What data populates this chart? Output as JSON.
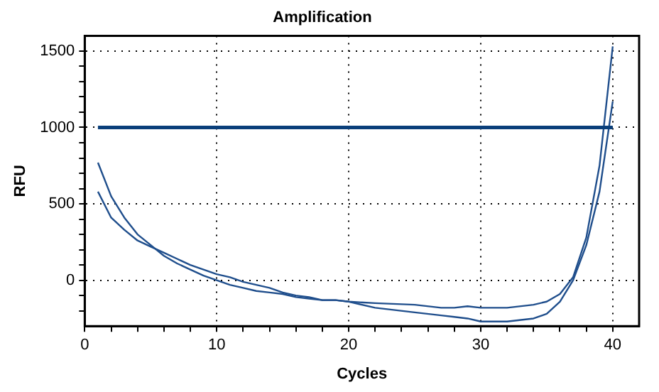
{
  "chart_data": {
    "type": "line",
    "title": "Amplification",
    "xlabel": "Cycles",
    "ylabel": "RFU",
    "x": [
      1,
      2,
      3,
      4,
      5,
      6,
      7,
      8,
      9,
      10,
      11,
      12,
      13,
      14,
      15,
      16,
      17,
      18,
      19,
      20,
      22,
      25,
      27,
      28,
      29,
      30,
      32,
      34,
      35,
      36,
      37,
      38,
      39,
      40
    ],
    "series": [
      {
        "color": "#1f4e8c",
        "values": [
          770,
          550,
          410,
          300,
          230,
          160,
          110,
          70,
          30,
          0,
          -30,
          -50,
          -70,
          -80,
          -90,
          -110,
          -120,
          -130,
          -130,
          -140,
          -180,
          -210,
          -230,
          -240,
          -250,
          -270,
          -270,
          -250,
          -220,
          -140,
          0,
          230,
          580,
          1170
        ]
      },
      {
        "color": "#1f4e8c",
        "values": [
          580,
          410,
          330,
          260,
          220,
          180,
          140,
          100,
          70,
          40,
          20,
          -10,
          -30,
          -50,
          -80,
          -100,
          -110,
          -130,
          -130,
          -140,
          -150,
          -160,
          -180,
          -180,
          -170,
          -180,
          -180,
          -160,
          -140,
          -90,
          20,
          280,
          750,
          1530
        ]
      }
    ],
    "ref_lines": [
      {
        "axis": "y",
        "value": 1000,
        "color": "#0a3f7a"
      }
    ],
    "xlim": [
      0,
      42
    ],
    "xticks": [
      0,
      {
        "value": 2,
        "label": null
      },
      {
        "value": 4,
        "label": null
      },
      {
        "value": 6,
        "label": null
      },
      {
        "value": 8,
        "label": null
      },
      10,
      {
        "value": 12,
        "label": null
      },
      {
        "value": 14,
        "label": null
      },
      {
        "value": 16,
        "label": null
      },
      {
        "value": 18,
        "label": null
      },
      20,
      {
        "value": 22,
        "label": null
      },
      {
        "value": 24,
        "label": null
      },
      {
        "value": 26,
        "label": null
      },
      {
        "value": 28,
        "label": null
      },
      30,
      {
        "value": 32,
        "label": null
      },
      {
        "value": 34,
        "label": null
      },
      {
        "value": 36,
        "label": null
      },
      {
        "value": 38,
        "label": null
      },
      40
    ],
    "ylim": [
      -300,
      1600
    ],
    "yticks": [
      {
        "value": -200,
        "label": null
      },
      {
        "value": -100,
        "label": null
      },
      0,
      {
        "value": 100,
        "label": null
      },
      {
        "value": 200,
        "label": null
      },
      {
        "value": 300,
        "label": null
      },
      {
        "value": 400,
        "label": null
      },
      500,
      {
        "value": 600,
        "label": null
      },
      {
        "value": 700,
        "label": null
      },
      {
        "value": 800,
        "label": null
      },
      {
        "value": 900,
        "label": null
      },
      1000,
      {
        "value": 1100,
        "label": null
      },
      {
        "value": 1200,
        "label": null
      },
      {
        "value": 1300,
        "label": null
      },
      {
        "value": 1400,
        "label": null
      },
      1500
    ],
    "grid": true,
    "marker": "none",
    "line_style": "solid",
    "legend": false
  }
}
